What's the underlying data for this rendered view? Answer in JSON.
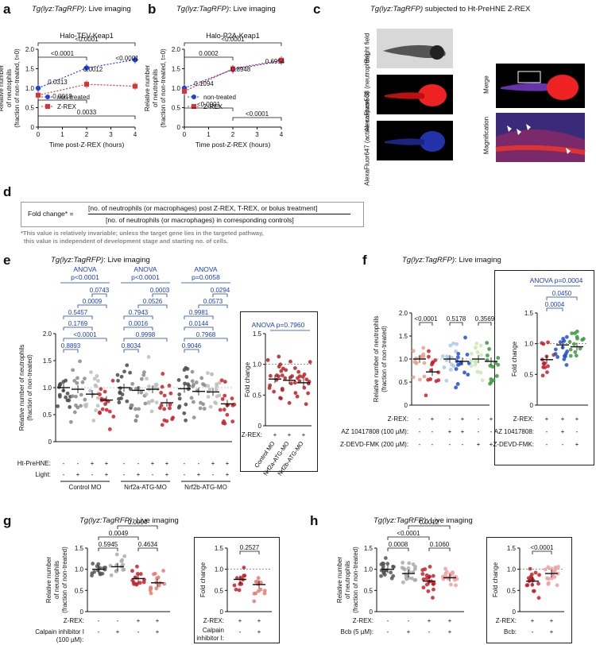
{
  "panels": {
    "a": {
      "letter": "a",
      "title_italic": "Tg(lyz:TagRFP)",
      "title_rest": ": Live imaging",
      "subtitle": "Halo-TEV-Keap1",
      "ylabel": [
        "Relative number",
        "of neutrophils",
        "(fraction of non-treated, t=0)"
      ],
      "xlabel": "Time post-Z-REX (hours)",
      "legend": [
        "non-treated",
        "Z-REX"
      ],
      "pvalues": [
        "<0.0001",
        "<0.0001",
        "0.0012",
        "<0.0001",
        "0.0313",
        "0.0019",
        "0.0033"
      ]
    },
    "b": {
      "letter": "b",
      "title_italic": "Tg(lyz:TagRFP)",
      "title_rest": ": Live imaging",
      "subtitle": "Halo-P2A-Keap1",
      "ylabel": [
        "Relative number",
        "of neutrophils",
        "(fraction of non-treated, t=0)"
      ],
      "xlabel": "Time post-Z-REX (hours)",
      "legend": [
        "non-treated",
        "Z-REX"
      ],
      "pvalues": [
        "<0.0001",
        "0.0002",
        "0.8948",
        "0.6954",
        "0.1094",
        "<0.0001",
        "<0.0001"
      ]
    },
    "c": {
      "letter": "c",
      "title_italic": "Tg(lyz:TagRFP)",
      "title_rest": " subjected to Ht-PreHNE Z-REX",
      "row_labels": [
        "Bright field",
        "AlexaFluor568 (neutrophils)",
        "AlexaFluor647 (active caspase 3)"
      ],
      "merge": "Merge",
      "magnification": "Magnification"
    },
    "d": {
      "letter": "d",
      "lhs": "Fold change* =",
      "numerator": "[no. of neutrophils (or macrophages) post Z-REX, T-REX, or bolus treatment]",
      "denominator": "[no. of neutrophils (or macrophages) in corresponding controls]",
      "note1": "*This value is relatively invariable; unless the target gene lies in the targeted pathway,",
      "note2": "this value is independent of development stage and starting no. of cells."
    },
    "e": {
      "letter": "e",
      "title_italic": "Tg(lyz:TagRFP)",
      "title_rest": ": Live imaging",
      "ylabel": [
        "Relative number of neutrophils",
        "(fraction of non-treated)"
      ],
      "anova": [
        "ANOVA",
        "p<0.0001",
        "ANOVA",
        "p<0.0001",
        "ANOVA",
        "p=0.0058"
      ],
      "pvalues": [
        "0.0743",
        "0.0009",
        "0.5457",
        "0.1769",
        "<0.0001",
        "0.8893",
        "0.0003",
        "0.0526",
        "0.7943",
        "0.0016",
        "0.9998",
        "0.8034",
        "0.0294",
        "0.0573",
        "0.9981",
        "0.0144",
        "0.7968",
        "0.9046"
      ],
      "rows": [
        "Ht-PreHNE:",
        "Light:"
      ],
      "groups": [
        "Control MO",
        "Nrf2a-ATG-MO",
        "Nrf2b-ATG-MO"
      ],
      "inset_anova": "ANOVA p=0.7960",
      "inset_ylabel": "Fold change",
      "inset_row": "Z-REX:",
      "inset_groups": [
        "Control MO",
        "Nrf2a-ATG-MO",
        "Nrf2b-ATG-MO"
      ]
    },
    "f": {
      "letter": "f",
      "title_italic": "Tg(lyz:TagRFP)",
      "title_rest": ": Live imaging",
      "ylabel": [
        "Relative number of neutrophils",
        "(fraction of non-treated)"
      ],
      "pvalues": [
        "<0.0001",
        "0.5178",
        "0.3569"
      ],
      "rows": [
        "Z-REX:",
        "AZ 10417808 (100 µM):",
        "Z-DEVD-FMK (200 µM):"
      ],
      "inset_anova": "ANOVA p=0.0004",
      "inset_pvalues": [
        "0.0450",
        "0.0004"
      ],
      "inset_ylabel": "Fold change",
      "inset_rows": [
        "Z-REX:",
        "AZ 10417808:",
        "Z-DEVD-FMK:"
      ]
    },
    "g": {
      "letter": "g",
      "title_italic": "Tg(lyz:TagRFP)",
      "title_rest": ": Live imaging",
      "ylabel": [
        "Relative number",
        "of neutrophils",
        "(fraction of non-treated)"
      ],
      "pvalues": [
        "0.0004",
        "0.0049",
        "0.5945",
        "0.4634"
      ],
      "rows": [
        "Z-REX:",
        "Calpain inhibitor I",
        "(100 µM):"
      ],
      "inset_pvalues": [
        "0.2527"
      ],
      "inset_ylabel": "Fold change",
      "inset_rows": [
        "Z-REX:",
        "Calpain",
        "inhibitor I:"
      ]
    },
    "h": {
      "letter": "h",
      "title_italic": "Tg(lyz:TagRFP)",
      "title_rest": ": Live imaging",
      "ylabel": [
        "Relative number",
        "of neutrophils",
        "(fraction of non-treated)"
      ],
      "pvalues": [
        "0.0012",
        "<0.0001",
        "0.0008",
        "0.1060"
      ],
      "rows": [
        "Z-REX:",
        "Bcb (5 µM):"
      ],
      "inset_pvalues": [
        "<0.0001"
      ],
      "inset_ylabel": "Fold change",
      "inset_rows": [
        "Z-REX:",
        "Bcb:"
      ]
    }
  },
  "chart_data": [
    {
      "type": "line",
      "panel": "a",
      "x": [
        0,
        2,
        4
      ],
      "series": [
        {
          "name": "non-treated",
          "values": [
            1.0,
            1.52,
            1.73
          ]
        },
        {
          "name": "Z-REX",
          "values": [
            0.82,
            1.1,
            1.05
          ]
        }
      ],
      "xlim": [
        0,
        4
      ],
      "ylim": [
        0,
        2.0
      ],
      "xticks": [
        "0",
        "1",
        "2",
        "3",
        "4"
      ],
      "yticks": [
        "0",
        "0.5",
        "1.0",
        "1.5",
        "2.0"
      ],
      "colors": [
        "#1f3fe0",
        "#e03030"
      ]
    },
    {
      "type": "line",
      "panel": "b",
      "x": [
        0,
        2,
        4
      ],
      "series": [
        {
          "name": "non-treated",
          "values": [
            1.0,
            1.48,
            1.7
          ]
        },
        {
          "name": "Z-REX",
          "values": [
            0.92,
            1.5,
            1.72
          ]
        }
      ],
      "xlim": [
        0,
        4
      ],
      "ylim": [
        0,
        2.0
      ],
      "xticks": [
        "0",
        "1",
        "2",
        "3",
        "4"
      ],
      "yticks": [
        "0",
        "0.5",
        "1.0",
        "1.5",
        "2.0"
      ],
      "colors": [
        "#1f3fe0",
        "#e03030"
      ]
    },
    {
      "type": "scatter",
      "panel": "e",
      "means": [
        1.0,
        0.97,
        0.88,
        0.77,
        1.0,
        0.95,
        0.97,
        0.72,
        0.98,
        0.93,
        0.92,
        0.7
      ],
      "ht_prehne": [
        "-",
        "-",
        "+",
        "+",
        "-",
        "-",
        "+",
        "+",
        "-",
        "-",
        "+",
        "+"
      ],
      "light": [
        "-",
        "+",
        "-",
        "+",
        "-",
        "+",
        "-",
        "+",
        "-",
        "+",
        "-",
        "+"
      ],
      "ylim": [
        0,
        2.0
      ],
      "yticks": [
        "0",
        "0.5",
        "1.0",
        "1.5",
        "2.0"
      ]
    },
    {
      "type": "scatter",
      "panel": "e-inset",
      "means": [
        0.76,
        0.74,
        0.7
      ],
      "zrex": [
        "+",
        "+",
        "+"
      ],
      "ylim": [
        0,
        1.5
      ],
      "yticks": [
        "0",
        "0.5",
        "1.0",
        "1.5"
      ]
    },
    {
      "type": "scatter",
      "panel": "f",
      "means": [
        1.0,
        0.72,
        1.0,
        0.95,
        1.0,
        0.95
      ],
      "zrex": [
        "-",
        "+",
        "-",
        "+",
        "-",
        "+"
      ],
      "az": [
        "-",
        "-",
        "+",
        "+",
        "-",
        "-"
      ],
      "zdevd": [
        "-",
        "-",
        "-",
        "-",
        "+",
        "+"
      ],
      "ylim": [
        0,
        2.0
      ],
      "yticks": [
        "0",
        "0.5",
        "1.0",
        "1.5",
        "2.0"
      ]
    },
    {
      "type": "scatter",
      "panel": "f-inset",
      "means": [
        0.74,
        0.98,
        0.95
      ],
      "zrex": [
        "+",
        "+",
        "+"
      ],
      "az": [
        "-",
        "+",
        "-"
      ],
      "zdevd": [
        "-",
        "-",
        "+"
      ],
      "ylim": [
        0,
        1.5
      ],
      "yticks": [
        "0",
        "0.5",
        "1.0",
        "1.5"
      ]
    },
    {
      "type": "scatter",
      "panel": "g",
      "means": [
        1.0,
        1.06,
        0.78,
        0.68
      ],
      "zrex": [
        "-",
        "-",
        "+",
        "+"
      ],
      "calpain": [
        "-",
        "+",
        "-",
        "+"
      ],
      "ylim": [
        0,
        1.5
      ],
      "yticks": [
        "0",
        "0.5",
        "1.0",
        "1.5"
      ]
    },
    {
      "type": "scatter",
      "panel": "g-inset",
      "means": [
        0.76,
        0.64
      ],
      "zrex": [
        "+",
        "+"
      ],
      "calpain": [
        "-",
        "+"
      ],
      "ylim": [
        0,
        1.5
      ],
      "yticks": [
        "0",
        "0.5",
        "1.0",
        "1.5"
      ]
    },
    {
      "type": "scatter",
      "panel": "h",
      "means": [
        1.0,
        0.9,
        0.72,
        0.8
      ],
      "zrex": [
        "-",
        "-",
        "+",
        "+"
      ],
      "bcb": [
        "-",
        "+",
        "-",
        "+"
      ],
      "ylim": [
        0,
        1.5
      ],
      "yticks": [
        "0",
        "0.5",
        "1.0",
        "1.5"
      ]
    },
    {
      "type": "scatter",
      "panel": "h-inset",
      "means": [
        0.72,
        0.9
      ],
      "zrex": [
        "+",
        "+"
      ],
      "bcb": [
        "-",
        "+"
      ],
      "ylim": [
        0,
        1.5
      ],
      "yticks": [
        "0",
        "0.5",
        "1.0",
        "1.5"
      ]
    }
  ]
}
